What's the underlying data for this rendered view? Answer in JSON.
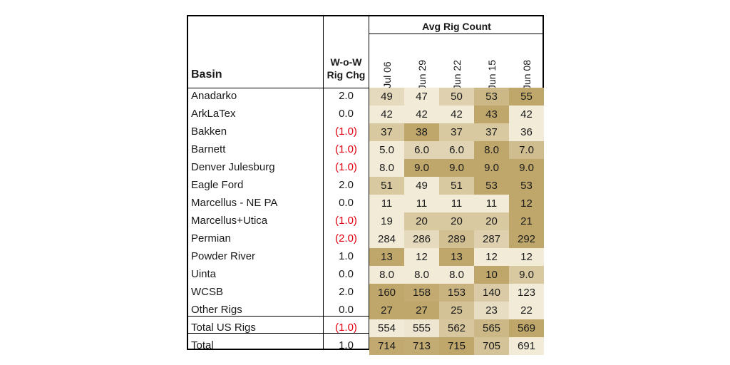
{
  "header": {
    "avg_rig_count": "Avg Rig Count",
    "basin": "Basin",
    "wow_line1": "W-o-W",
    "wow_line2": "Rig Chg",
    "dates": [
      "Jul 06",
      "Jun 29",
      "Jun 22",
      "Jun 15",
      "Jun 08"
    ]
  },
  "rows": [
    {
      "basin": "Anadarko",
      "chg": "2.0",
      "neg": false,
      "values": [
        "49",
        "47",
        "50",
        "53",
        "55"
      ],
      "nums": [
        49,
        47,
        50,
        53,
        55
      ]
    },
    {
      "basin": "ArkLaTex",
      "chg": "0.0",
      "neg": false,
      "values": [
        "42",
        "42",
        "42",
        "43",
        "42"
      ],
      "nums": [
        42,
        42,
        42,
        43,
        42
      ]
    },
    {
      "basin": "Bakken",
      "chg": "(1.0)",
      "neg": true,
      "values": [
        "37",
        "38",
        "37",
        "37",
        "36"
      ],
      "nums": [
        37,
        38,
        37,
        37,
        36
      ]
    },
    {
      "basin": "Barnett",
      "chg": "(1.0)",
      "neg": true,
      "values": [
        "5.0",
        "6.0",
        "6.0",
        "8.0",
        "7.0"
      ],
      "nums": [
        5,
        6,
        6,
        8,
        7
      ]
    },
    {
      "basin": "Denver Julesburg",
      "chg": "(1.0)",
      "neg": true,
      "values": [
        "8.0",
        "9.0",
        "9.0",
        "9.0",
        "9.0"
      ],
      "nums": [
        8,
        9,
        9,
        9,
        9
      ]
    },
    {
      "basin": "Eagle Ford",
      "chg": "2.0",
      "neg": false,
      "values": [
        "51",
        "49",
        "51",
        "53",
        "53"
      ],
      "nums": [
        51,
        49,
        51,
        53,
        53
      ]
    },
    {
      "basin": "Marcellus - NE PA",
      "chg": "0.0",
      "neg": false,
      "values": [
        "11",
        "11",
        "11",
        "11",
        "12"
      ],
      "nums": [
        11,
        11,
        11,
        11,
        12
      ]
    },
    {
      "basin": "Marcellus+Utica",
      "chg": "(1.0)",
      "neg": true,
      "values": [
        "19",
        "20",
        "20",
        "20",
        "21"
      ],
      "nums": [
        19,
        20,
        20,
        20,
        21
      ]
    },
    {
      "basin": "Permian",
      "chg": "(2.0)",
      "neg": true,
      "values": [
        "284",
        "286",
        "289",
        "287",
        "292"
      ],
      "nums": [
        284,
        286,
        289,
        287,
        292
      ]
    },
    {
      "basin": "Powder River",
      "chg": "1.0",
      "neg": false,
      "values": [
        "13",
        "12",
        "13",
        "12",
        "12"
      ],
      "nums": [
        13,
        12,
        13,
        12,
        12
      ]
    },
    {
      "basin": "Uinta",
      "chg": "0.0",
      "neg": false,
      "values": [
        "8.0",
        "8.0",
        "8.0",
        "10",
        "9.0"
      ],
      "nums": [
        8,
        8,
        8,
        10,
        9
      ]
    },
    {
      "basin": "WCSB",
      "chg": "2.0",
      "neg": false,
      "values": [
        "160",
        "158",
        "153",
        "140",
        "123"
      ],
      "nums": [
        160,
        158,
        153,
        140,
        123
      ]
    },
    {
      "basin": "Other Rigs",
      "chg": "0.0",
      "neg": false,
      "values": [
        "27",
        "27",
        "25",
        "23",
        "22"
      ],
      "nums": [
        27,
        27,
        25,
        23,
        22
      ]
    },
    {
      "basin": "Total US Rigs",
      "chg": "(1.0)",
      "neg": true,
      "values": [
        "554",
        "555",
        "562",
        "565",
        "569"
      ],
      "nums": [
        554,
        555,
        562,
        565,
        569
      ]
    },
    {
      "basin": "Total",
      "chg": "1.0",
      "neg": false,
      "values": [
        "714",
        "713",
        "715",
        "705",
        "691"
      ],
      "nums": [
        714,
        713,
        715,
        705,
        691
      ]
    }
  ],
  "colors": {
    "low": "#f6f1e2",
    "high": "#bfa66a",
    "negative": "#e0000f"
  }
}
